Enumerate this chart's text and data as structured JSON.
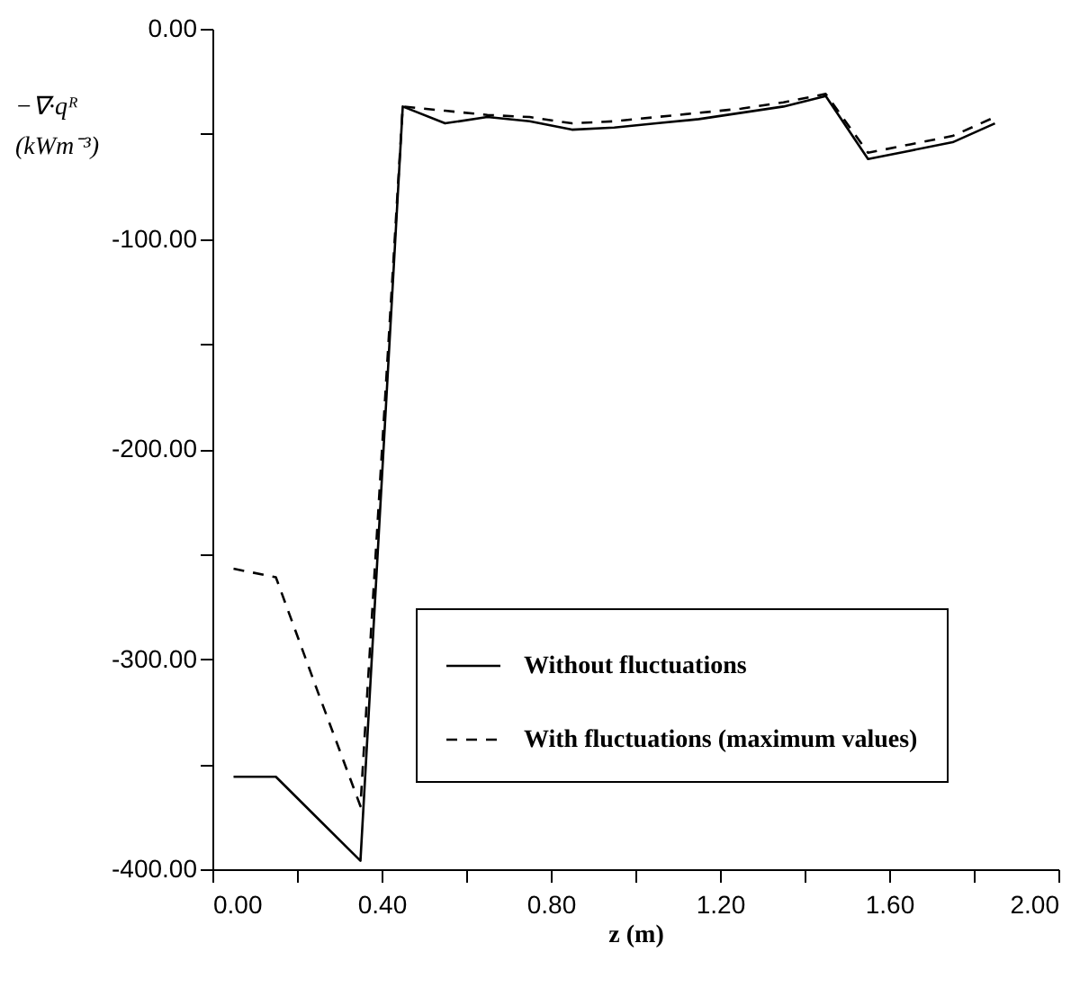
{
  "chart_data": {
    "type": "line",
    "xlabel": "z (m)",
    "ylabel": "−∇·qᴿ\n(kWm⁻³)",
    "x": [
      0.05,
      0.15,
      0.25,
      0.35,
      0.45,
      0.55,
      0.65,
      0.75,
      0.85,
      0.95,
      1.05,
      1.15,
      1.25,
      1.35,
      1.45,
      1.55,
      1.65,
      1.75,
      1.85
    ],
    "series": [
      {
        "name": "Without fluctuations",
        "color": "#000000",
        "line_style": "solid",
        "values": [
          -356,
          -356,
          -376,
          -396,
          -37,
          -45,
          -42,
          -44,
          -48,
          -47,
          -45,
          -43,
          -40,
          -37,
          -32,
          -62,
          -58,
          -54,
          -45
        ]
      },
      {
        "name": "With fluctuations (maximum values)",
        "color": "#000000",
        "line_style": "dashed",
        "values": [
          -257,
          -261,
          -316,
          -370,
          -37,
          -39,
          -41,
          -42,
          -45,
          -44,
          -42,
          -40,
          -38,
          -35,
          -31,
          -59,
          -55,
          -51,
          -42
        ]
      }
    ],
    "xlim": [
      0,
      2
    ],
    "ylim": [
      -400,
      0
    ],
    "xticks": [
      {
        "value": 0,
        "label": "0.00"
      },
      {
        "value": 0.2,
        "label": null
      },
      {
        "value": 0.4,
        "label": "0.40"
      },
      {
        "value": 0.6,
        "label": null
      },
      {
        "value": 0.8,
        "label": "0.80"
      },
      {
        "value": 1.0,
        "label": null
      },
      {
        "value": 1.2,
        "label": "1.20"
      },
      {
        "value": 1.4,
        "label": null
      },
      {
        "value": 1.6,
        "label": "1.60"
      },
      {
        "value": 1.8,
        "label": null
      },
      {
        "value": 2.0,
        "label": "2.00"
      }
    ],
    "yticks": [
      {
        "value": -400,
        "label": "-400.00"
      },
      {
        "value": -350,
        "label": null
      },
      {
        "value": -300,
        "label": "-300.00"
      },
      {
        "value": -250,
        "label": null
      },
      {
        "value": -200,
        "label": "-200.00"
      },
      {
        "value": -150,
        "label": null
      },
      {
        "value": -100,
        "label": "-100.00"
      },
      {
        "value": -50,
        "label": null
      },
      {
        "value": 0,
        "label": "0.00"
      }
    ],
    "legend": "bottom right",
    "grid": false,
    "marker": "none"
  }
}
